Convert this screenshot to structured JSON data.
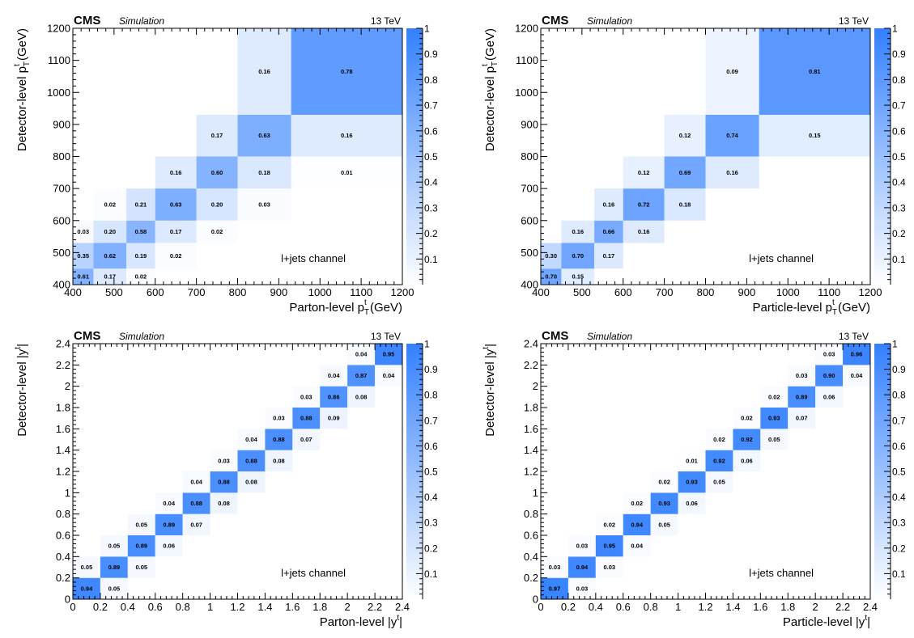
{
  "chart_data": [
    {
      "type": "heatmap",
      "header": {
        "experiment": "CMS",
        "tag": "Simulation",
        "energy": "13 TeV"
      },
      "annotation": "l+jets channel",
      "xlabel": {
        "main": "Parton-level p",
        "sub": "T",
        "sup": "t",
        "tail": " (GeV)"
      },
      "ylabel": {
        "main": "Detector-level p",
        "sub": "T",
        "sup": "t",
        "tail": " (GeV)"
      },
      "bins": [
        400,
        450,
        530,
        600,
        700,
        800,
        930,
        1200
      ],
      "xlim": [
        400,
        1200
      ],
      "ylim": [
        400,
        1200
      ],
      "xticks": [
        400,
        500,
        600,
        700,
        800,
        900,
        1000,
        1100,
        1200
      ],
      "yticks": [
        400,
        500,
        600,
        700,
        800,
        900,
        1000,
        1100,
        1200
      ],
      "xtick_labels": [
        "400",
        "500",
        "600",
        "700",
        "800",
        "900",
        "1000",
        "1100",
        "1200"
      ],
      "ytick_labels": [
        "400",
        "500",
        "600",
        "700",
        "800",
        "900",
        "1000",
        "1100",
        "1200"
      ],
      "zlim": [
        0,
        1
      ],
      "zticks": [
        0.1,
        0.2,
        0.3,
        0.4,
        0.5,
        0.6,
        0.7,
        0.8,
        0.9,
        1
      ],
      "ztick_labels": [
        "0.1",
        "0.2",
        "0.3",
        "0.4",
        "0.5",
        "0.6",
        "0.7",
        "0.8",
        "0.9",
        "1"
      ],
      "cells": [
        {
          "i": 0,
          "j": 0,
          "v": 0.61,
          "t": "0.61"
        },
        {
          "i": 0,
          "j": 1,
          "v": 0.35,
          "t": "0.35"
        },
        {
          "i": 0,
          "j": 2,
          "v": 0.03,
          "t": "0.03"
        },
        {
          "i": 1,
          "j": 0,
          "v": 0.17,
          "t": "0.17"
        },
        {
          "i": 1,
          "j": 1,
          "v": 0.62,
          "t": "0.62"
        },
        {
          "i": 1,
          "j": 2,
          "v": 0.2,
          "t": "0.20"
        },
        {
          "i": 1,
          "j": 3,
          "v": 0.02,
          "t": "0.02"
        },
        {
          "i": 2,
          "j": 0,
          "v": 0.02,
          "t": "0.02"
        },
        {
          "i": 2,
          "j": 1,
          "v": 0.19,
          "t": "0.19"
        },
        {
          "i": 2,
          "j": 2,
          "v": 0.58,
          "t": "0.58"
        },
        {
          "i": 2,
          "j": 3,
          "v": 0.21,
          "t": "0.21"
        },
        {
          "i": 3,
          "j": 1,
          "v": 0.02,
          "t": "0.02"
        },
        {
          "i": 3,
          "j": 2,
          "v": 0.17,
          "t": "0.17"
        },
        {
          "i": 3,
          "j": 3,
          "v": 0.63,
          "t": "0.63"
        },
        {
          "i": 3,
          "j": 4,
          "v": 0.16,
          "t": "0.16"
        },
        {
          "i": 4,
          "j": 2,
          "v": 0.02,
          "t": "0.02"
        },
        {
          "i": 4,
          "j": 3,
          "v": 0.2,
          "t": "0.20"
        },
        {
          "i": 4,
          "j": 4,
          "v": 0.6,
          "t": "0.60"
        },
        {
          "i": 4,
          "j": 5,
          "v": 0.17,
          "t": "0.17"
        },
        {
          "i": 5,
          "j": 3,
          "v": 0.03,
          "t": "0.03"
        },
        {
          "i": 5,
          "j": 4,
          "v": 0.18,
          "t": "0.18"
        },
        {
          "i": 5,
          "j": 5,
          "v": 0.63,
          "t": "0.63"
        },
        {
          "i": 5,
          "j": 6,
          "v": 0.16,
          "t": "0.16"
        },
        {
          "i": 6,
          "j": 4,
          "v": 0.01,
          "t": "0.01"
        },
        {
          "i": 6,
          "j": 5,
          "v": 0.16,
          "t": "0.16"
        },
        {
          "i": 6,
          "j": 6,
          "v": 0.78,
          "t": "0.78"
        }
      ]
    },
    {
      "type": "heatmap",
      "header": {
        "experiment": "CMS",
        "tag": "Simulation",
        "energy": "13 TeV"
      },
      "annotation": "l+jets channel",
      "xlabel": {
        "main": "Particle-level p",
        "sub": "T",
        "sup": "t",
        "tail": " (GeV)"
      },
      "ylabel": {
        "main": "Detector-level p",
        "sub": "T",
        "sup": "t",
        "tail": " (GeV)"
      },
      "bins": [
        400,
        450,
        530,
        600,
        700,
        800,
        930,
        1200
      ],
      "xlim": [
        400,
        1200
      ],
      "ylim": [
        400,
        1200
      ],
      "xticks": [
        400,
        500,
        600,
        700,
        800,
        900,
        1000,
        1100,
        1200
      ],
      "yticks": [
        400,
        500,
        600,
        700,
        800,
        900,
        1000,
        1100,
        1200
      ],
      "xtick_labels": [
        "400",
        "500",
        "600",
        "700",
        "800",
        "900",
        "1000",
        "1100",
        "1200"
      ],
      "ytick_labels": [
        "400",
        "500",
        "600",
        "700",
        "800",
        "900",
        "1000",
        "1100",
        "1200"
      ],
      "zlim": [
        0,
        1
      ],
      "zticks": [
        0.1,
        0.2,
        0.3,
        0.4,
        0.5,
        0.6,
        0.7,
        0.8,
        0.9,
        1
      ],
      "ztick_labels": [
        "0.1",
        "0.2",
        "0.3",
        "0.4",
        "0.5",
        "0.6",
        "0.7",
        "0.8",
        "0.9",
        "1"
      ],
      "cells": [
        {
          "i": 0,
          "j": 0,
          "v": 0.7,
          "t": "0.70"
        },
        {
          "i": 0,
          "j": 1,
          "v": 0.3,
          "t": "0.30"
        },
        {
          "i": 1,
          "j": 0,
          "v": 0.15,
          "t": "0.15"
        },
        {
          "i": 1,
          "j": 1,
          "v": 0.7,
          "t": "0.70"
        },
        {
          "i": 1,
          "j": 2,
          "v": 0.16,
          "t": "0.16"
        },
        {
          "i": 2,
          "j": 1,
          "v": 0.17,
          "t": "0.17"
        },
        {
          "i": 2,
          "j": 2,
          "v": 0.66,
          "t": "0.66"
        },
        {
          "i": 2,
          "j": 3,
          "v": 0.16,
          "t": "0.16"
        },
        {
          "i": 3,
          "j": 2,
          "v": 0.16,
          "t": "0.16"
        },
        {
          "i": 3,
          "j": 3,
          "v": 0.72,
          "t": "0.72"
        },
        {
          "i": 3,
          "j": 4,
          "v": 0.12,
          "t": "0.12"
        },
        {
          "i": 4,
          "j": 3,
          "v": 0.18,
          "t": "0.18"
        },
        {
          "i": 4,
          "j": 4,
          "v": 0.69,
          "t": "0.69"
        },
        {
          "i": 4,
          "j": 5,
          "v": 0.12,
          "t": "0.12"
        },
        {
          "i": 5,
          "j": 4,
          "v": 0.16,
          "t": "0.16"
        },
        {
          "i": 5,
          "j": 5,
          "v": 0.74,
          "t": "0.74"
        },
        {
          "i": 5,
          "j": 6,
          "v": 0.09,
          "t": "0.09"
        },
        {
          "i": 6,
          "j": 5,
          "v": 0.15,
          "t": "0.15"
        },
        {
          "i": 6,
          "j": 6,
          "v": 0.81,
          "t": "0.81"
        }
      ]
    },
    {
      "type": "heatmap",
      "header": {
        "experiment": "CMS",
        "tag": "Simulation",
        "energy": "13 TeV"
      },
      "annotation": "l+jets channel",
      "xlabel": {
        "main": "Parton-level |y",
        "sub": "",
        "sup": "t",
        "tail": "|"
      },
      "ylabel": {
        "main": "Detector-level |y",
        "sub": "",
        "sup": "t",
        "tail": "|"
      },
      "bins": [
        0,
        0.2,
        0.4,
        0.6,
        0.8,
        1.0,
        1.2,
        1.4,
        1.6,
        1.8,
        2.0,
        2.2,
        2.4
      ],
      "xlim": [
        0,
        2.4
      ],
      "ylim": [
        0,
        2.4
      ],
      "xticks": [
        0,
        0.2,
        0.4,
        0.6,
        0.8,
        1,
        1.2,
        1.4,
        1.6,
        1.8,
        2,
        2.2,
        2.4
      ],
      "yticks": [
        0,
        0.2,
        0.4,
        0.6,
        0.8,
        1,
        1.2,
        1.4,
        1.6,
        1.8,
        2,
        2.2,
        2.4
      ],
      "xtick_labels": [
        "0",
        "0.2",
        "0.4",
        "0.6",
        "0.8",
        "1",
        "1.2",
        "1.4",
        "1.6",
        "1.8",
        "2",
        "2.2",
        "2.4"
      ],
      "ytick_labels": [
        "0",
        "0.2",
        "0.4",
        "0.6",
        "0.8",
        "1",
        "1.2",
        "1.4",
        "1.6",
        "1.8",
        "2",
        "2.2",
        "2.4"
      ],
      "zlim": [
        0,
        1
      ],
      "zticks": [
        0.1,
        0.2,
        0.3,
        0.4,
        0.5,
        0.6,
        0.7,
        0.8,
        0.9,
        1
      ],
      "ztick_labels": [
        "0.1",
        "0.2",
        "0.3",
        "0.4",
        "0.5",
        "0.6",
        "0.7",
        "0.8",
        "0.9",
        "1"
      ],
      "cells": [
        {
          "i": 0,
          "j": 0,
          "v": 0.94,
          "t": "0.94"
        },
        {
          "i": 0,
          "j": 1,
          "v": 0.05,
          "t": "0.05"
        },
        {
          "i": 1,
          "j": 0,
          "v": 0.05,
          "t": "0.05"
        },
        {
          "i": 1,
          "j": 1,
          "v": 0.89,
          "t": "0.89"
        },
        {
          "i": 1,
          "j": 2,
          "v": 0.05,
          "t": "0.05"
        },
        {
          "i": 2,
          "j": 1,
          "v": 0.05,
          "t": "0.05"
        },
        {
          "i": 2,
          "j": 2,
          "v": 0.89,
          "t": "0.89"
        },
        {
          "i": 2,
          "j": 3,
          "v": 0.05,
          "t": "0.05"
        },
        {
          "i": 3,
          "j": 2,
          "v": 0.06,
          "t": "0.06"
        },
        {
          "i": 3,
          "j": 3,
          "v": 0.89,
          "t": "0.89"
        },
        {
          "i": 3,
          "j": 4,
          "v": 0.04,
          "t": "0.04"
        },
        {
          "i": 4,
          "j": 3,
          "v": 0.07,
          "t": "0.07"
        },
        {
          "i": 4,
          "j": 4,
          "v": 0.88,
          "t": "0.88"
        },
        {
          "i": 4,
          "j": 5,
          "v": 0.04,
          "t": "0.04"
        },
        {
          "i": 5,
          "j": 4,
          "v": 0.08,
          "t": "0.08"
        },
        {
          "i": 5,
          "j": 5,
          "v": 0.88,
          "t": "0.88"
        },
        {
          "i": 5,
          "j": 6,
          "v": 0.03,
          "t": "0.03"
        },
        {
          "i": 6,
          "j": 5,
          "v": 0.08,
          "t": "0.08"
        },
        {
          "i": 6,
          "j": 6,
          "v": 0.88,
          "t": "0.88"
        },
        {
          "i": 6,
          "j": 7,
          "v": 0.04,
          "t": "0.04"
        },
        {
          "i": 7,
          "j": 6,
          "v": 0.08,
          "t": "0.08"
        },
        {
          "i": 7,
          "j": 7,
          "v": 0.88,
          "t": "0.88"
        },
        {
          "i": 7,
          "j": 8,
          "v": 0.03,
          "t": "0.03"
        },
        {
          "i": 8,
          "j": 7,
          "v": 0.07,
          "t": "0.07"
        },
        {
          "i": 8,
          "j": 8,
          "v": 0.88,
          "t": "0.88"
        },
        {
          "i": 8,
          "j": 9,
          "v": 0.03,
          "t": "0.03"
        },
        {
          "i": 9,
          "j": 8,
          "v": 0.09,
          "t": "0.09"
        },
        {
          "i": 9,
          "j": 9,
          "v": 0.86,
          "t": "0.86"
        },
        {
          "i": 9,
          "j": 10,
          "v": 0.04,
          "t": "0.04"
        },
        {
          "i": 10,
          "j": 9,
          "v": 0.08,
          "t": "0.08"
        },
        {
          "i": 10,
          "j": 10,
          "v": 0.87,
          "t": "0.87"
        },
        {
          "i": 10,
          "j": 11,
          "v": 0.04,
          "t": "0.04"
        },
        {
          "i": 11,
          "j": 10,
          "v": 0.04,
          "t": "0.04"
        },
        {
          "i": 11,
          "j": 11,
          "v": 0.95,
          "t": "0.95"
        }
      ]
    },
    {
      "type": "heatmap",
      "header": {
        "experiment": "CMS",
        "tag": "Simulation",
        "energy": "13 TeV"
      },
      "annotation": "l+jets channel",
      "xlabel": {
        "main": "Particle-level |y",
        "sub": "",
        "sup": "t",
        "tail": "|"
      },
      "ylabel": {
        "main": "Detector-level |y",
        "sub": "",
        "sup": "t",
        "tail": "|"
      },
      "bins": [
        0,
        0.2,
        0.4,
        0.6,
        0.8,
        1.0,
        1.2,
        1.4,
        1.6,
        1.8,
        2.0,
        2.2,
        2.4
      ],
      "xlim": [
        0,
        2.4
      ],
      "ylim": [
        0,
        2.4
      ],
      "xticks": [
        0,
        0.2,
        0.4,
        0.6,
        0.8,
        1,
        1.2,
        1.4,
        1.6,
        1.8,
        2,
        2.2,
        2.4
      ],
      "yticks": [
        0,
        0.2,
        0.4,
        0.6,
        0.8,
        1,
        1.2,
        1.4,
        1.6,
        1.8,
        2,
        2.2,
        2.4
      ],
      "xtick_labels": [
        "0",
        "0.2",
        "0.4",
        "0.6",
        "0.8",
        "1",
        "1.2",
        "1.4",
        "1.6",
        "1.8",
        "2",
        "2.2",
        "2.4"
      ],
      "ytick_labels": [
        "0",
        "0.2",
        "0.4",
        "0.6",
        "0.8",
        "1",
        "1.2",
        "1.4",
        "1.6",
        "1.8",
        "2",
        "2.2",
        "2.4"
      ],
      "zlim": [
        0,
        1
      ],
      "zticks": [
        0.1,
        0.2,
        0.3,
        0.4,
        0.5,
        0.6,
        0.7,
        0.8,
        0.9,
        1
      ],
      "ztick_labels": [
        "0.1",
        "0.2",
        "0.3",
        "0.4",
        "0.5",
        "0.6",
        "0.7",
        "0.8",
        "0.9",
        "1"
      ],
      "cells": [
        {
          "i": 0,
          "j": 0,
          "v": 0.97,
          "t": "0.97"
        },
        {
          "i": 0,
          "j": 1,
          "v": 0.03,
          "t": "0.03"
        },
        {
          "i": 1,
          "j": 0,
          "v": 0.03,
          "t": "0.03"
        },
        {
          "i": 1,
          "j": 1,
          "v": 0.94,
          "t": "0.94"
        },
        {
          "i": 1,
          "j": 2,
          "v": 0.03,
          "t": "0.03"
        },
        {
          "i": 2,
          "j": 1,
          "v": 0.03,
          "t": "0.03"
        },
        {
          "i": 2,
          "j": 2,
          "v": 0.95,
          "t": "0.95"
        },
        {
          "i": 2,
          "j": 3,
          "v": 0.02,
          "t": "0.02"
        },
        {
          "i": 3,
          "j": 2,
          "v": 0.04,
          "t": "0.04"
        },
        {
          "i": 3,
          "j": 3,
          "v": 0.94,
          "t": "0.94"
        },
        {
          "i": 3,
          "j": 4,
          "v": 0.02,
          "t": "0.02"
        },
        {
          "i": 4,
          "j": 3,
          "v": 0.05,
          "t": "0.05"
        },
        {
          "i": 4,
          "j": 4,
          "v": 0.93,
          "t": "0.93"
        },
        {
          "i": 4,
          "j": 5,
          "v": 0.02,
          "t": "0.02"
        },
        {
          "i": 5,
          "j": 4,
          "v": 0.06,
          "t": "0.06"
        },
        {
          "i": 5,
          "j": 5,
          "v": 0.93,
          "t": "0.93"
        },
        {
          "i": 5,
          "j": 6,
          "v": 0.01,
          "t": "0.01"
        },
        {
          "i": 6,
          "j": 5,
          "v": 0.05,
          "t": "0.05"
        },
        {
          "i": 6,
          "j": 6,
          "v": 0.92,
          "t": "0.92"
        },
        {
          "i": 6,
          "j": 7,
          "v": 0.02,
          "t": "0.02"
        },
        {
          "i": 7,
          "j": 6,
          "v": 0.06,
          "t": "0.06"
        },
        {
          "i": 7,
          "j": 7,
          "v": 0.92,
          "t": "0.92"
        },
        {
          "i": 7,
          "j": 8,
          "v": 0.02,
          "t": "0.02"
        },
        {
          "i": 8,
          "j": 7,
          "v": 0.05,
          "t": "0.05"
        },
        {
          "i": 8,
          "j": 8,
          "v": 0.93,
          "t": "0.93"
        },
        {
          "i": 8,
          "j": 9,
          "v": 0.02,
          "t": "0.02"
        },
        {
          "i": 9,
          "j": 8,
          "v": 0.07,
          "t": "0.07"
        },
        {
          "i": 9,
          "j": 9,
          "v": 0.89,
          "t": "0.89"
        },
        {
          "i": 9,
          "j": 10,
          "v": 0.03,
          "t": "0.03"
        },
        {
          "i": 10,
          "j": 9,
          "v": 0.06,
          "t": "0.06"
        },
        {
          "i": 10,
          "j": 10,
          "v": 0.9,
          "t": "0.90"
        },
        {
          "i": 10,
          "j": 11,
          "v": 0.03,
          "t": "0.03"
        },
        {
          "i": 11,
          "j": 10,
          "v": 0.04,
          "t": "0.04"
        },
        {
          "i": 11,
          "j": 11,
          "v": 0.96,
          "t": "0.96"
        }
      ]
    }
  ],
  "colors": {
    "scale_low": "#ffffff",
    "scale_high": "#3380ff",
    "axis": "#000000"
  }
}
